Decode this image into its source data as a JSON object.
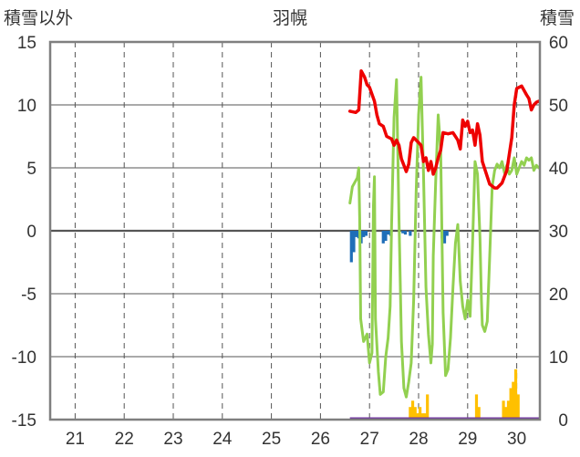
{
  "chart_data": {
    "type": "line",
    "title": "羽幌",
    "left_axis_label": "積雪以外",
    "right_axis_label": "積雪",
    "left_ylim": [
      -15,
      15
    ],
    "right_ylim": [
      0,
      60
    ],
    "left_ticks": [
      "15",
      "10",
      "5",
      "0",
      "-5",
      "-10",
      "-15"
    ],
    "right_ticks": [
      "60",
      "50",
      "40",
      "30",
      "20",
      "10",
      "0"
    ],
    "x_day_labels": [
      "21",
      "22",
      "23",
      "24",
      "25",
      "26",
      "27",
      "28",
      "29",
      "30"
    ],
    "grid": true,
    "colors": {
      "red": "#ee0000",
      "green": "#92d050",
      "blue": "#1f6eb8",
      "orange": "#ffc000",
      "purple": "#7030a0",
      "grid": "#555555",
      "frame": "#7f7f7f"
    },
    "series_red": [
      [
        26.6,
        9.5
      ],
      [
        26.72,
        9.4
      ],
      [
        26.78,
        9.6
      ],
      [
        26.83,
        12.7
      ],
      [
        26.9,
        12.2
      ],
      [
        26.95,
        11.6
      ],
      [
        27.0,
        11.4
      ],
      [
        27.1,
        10.3
      ],
      [
        27.15,
        9.2
      ],
      [
        27.2,
        8.5
      ],
      [
        27.28,
        8.3
      ],
      [
        27.35,
        7.5
      ],
      [
        27.45,
        7.3
      ],
      [
        27.5,
        6.8
      ],
      [
        27.55,
        7.2
      ],
      [
        27.6,
        6.8
      ],
      [
        27.65,
        5.7
      ],
      [
        27.7,
        5.2
      ],
      [
        27.75,
        4.7
      ],
      [
        27.8,
        5.3
      ],
      [
        27.85,
        7.0
      ],
      [
        27.9,
        7.4
      ],
      [
        28.0,
        7.0
      ],
      [
        28.05,
        6.8
      ],
      [
        28.1,
        5.5
      ],
      [
        28.15,
        5.8
      ],
      [
        28.2,
        4.8
      ],
      [
        28.25,
        5.5
      ],
      [
        28.3,
        4.5
      ],
      [
        28.35,
        5.0
      ],
      [
        28.4,
        5.8
      ],
      [
        28.45,
        6.4
      ],
      [
        28.5,
        7.8
      ],
      [
        28.6,
        7.7
      ],
      [
        28.7,
        7.8
      ],
      [
        28.8,
        7.2
      ],
      [
        28.85,
        6.5
      ],
      [
        28.9,
        8.8
      ],
      [
        28.95,
        8.3
      ],
      [
        29.0,
        8.7
      ],
      [
        29.05,
        7.8
      ],
      [
        29.1,
        8.0
      ],
      [
        29.15,
        6.8
      ],
      [
        29.2,
        8.5
      ],
      [
        29.25,
        7.6
      ],
      [
        29.3,
        5.5
      ],
      [
        29.4,
        4.3
      ],
      [
        29.45,
        3.7
      ],
      [
        29.55,
        3.4
      ],
      [
        29.6,
        3.4
      ],
      [
        29.7,
        3.8
      ],
      [
        29.8,
        4.8
      ],
      [
        29.9,
        7.4
      ],
      [
        29.95,
        10.0
      ],
      [
        30.0,
        11.3
      ],
      [
        30.1,
        11.5
      ],
      [
        30.2,
        10.8
      ],
      [
        30.25,
        10.5
      ],
      [
        30.3,
        9.6
      ],
      [
        30.35,
        10.0
      ],
      [
        30.4,
        10.2
      ],
      [
        30.45,
        10.3
      ]
    ],
    "series_green": [
      [
        26.6,
        2.2
      ],
      [
        26.65,
        3.5
      ],
      [
        26.75,
        4.2
      ],
      [
        26.78,
        5.0
      ],
      [
        26.8,
        1.0
      ],
      [
        26.82,
        -7.0
      ],
      [
        26.88,
        -8.8
      ],
      [
        26.95,
        -8.2
      ],
      [
        27.0,
        -10.5
      ],
      [
        27.05,
        -9.7
      ],
      [
        27.08,
        2.0
      ],
      [
        27.1,
        4.3
      ],
      [
        27.12,
        -7.0
      ],
      [
        27.18,
        -11.2
      ],
      [
        27.22,
        -13.0
      ],
      [
        27.28,
        -12.8
      ],
      [
        27.33,
        -10.0
      ],
      [
        27.38,
        -8.5
      ],
      [
        27.42,
        -6.0
      ],
      [
        27.45,
        0.5
      ],
      [
        27.5,
        9.0
      ],
      [
        27.55,
        12.0
      ],
      [
        27.6,
        1.0
      ],
      [
        27.65,
        -8.8
      ],
      [
        27.7,
        -12.5
      ],
      [
        27.75,
        -13.2
      ],
      [
        27.8,
        -12.0
      ],
      [
        27.85,
        -10.5
      ],
      [
        27.9,
        -5.5
      ],
      [
        27.95,
        3.0
      ],
      [
        28.0,
        9.2
      ],
      [
        28.05,
        12.2
      ],
      [
        28.1,
        4.5
      ],
      [
        28.15,
        -4.5
      ],
      [
        28.2,
        -8.2
      ],
      [
        28.25,
        -10.5
      ],
      [
        28.28,
        -9.0
      ],
      [
        28.3,
        -2.0
      ],
      [
        28.35,
        4.0
      ],
      [
        28.4,
        9.2
      ],
      [
        28.45,
        6.5
      ],
      [
        28.5,
        -6.5
      ],
      [
        28.55,
        -11.5
      ],
      [
        28.6,
        -11.0
      ],
      [
        28.65,
        -8.5
      ],
      [
        28.7,
        -4.5
      ],
      [
        28.75,
        -1.0
      ],
      [
        28.8,
        0.5
      ],
      [
        28.85,
        -4.0
      ],
      [
        28.9,
        -6.0
      ],
      [
        28.95,
        -7.0
      ],
      [
        29.0,
        -5.5
      ],
      [
        29.05,
        -6.8
      ],
      [
        29.1,
        -1.0
      ],
      [
        29.15,
        5.5
      ],
      [
        29.2,
        4.5
      ],
      [
        29.25,
        -0.5
      ],
      [
        29.28,
        -5.5
      ],
      [
        29.3,
        -7.5
      ],
      [
        29.35,
        -8.0
      ],
      [
        29.4,
        -7.2
      ],
      [
        29.45,
        -2.0
      ],
      [
        29.5,
        3.5
      ],
      [
        29.55,
        4.8
      ],
      [
        29.6,
        5.3
      ],
      [
        29.65,
        5.0
      ],
      [
        29.7,
        5.5
      ],
      [
        29.75,
        4.6
      ],
      [
        29.8,
        5.2
      ],
      [
        29.85,
        4.5
      ],
      [
        29.9,
        4.8
      ],
      [
        29.95,
        5.8
      ],
      [
        30.0,
        4.5
      ],
      [
        30.05,
        5.0
      ],
      [
        30.1,
        5.5
      ],
      [
        30.15,
        5.2
      ],
      [
        30.2,
        5.8
      ],
      [
        30.25,
        5.6
      ],
      [
        30.3,
        5.8
      ],
      [
        30.35,
        4.8
      ],
      [
        30.4,
        5.2
      ],
      [
        30.45,
        5.0
      ]
    ],
    "bars_blue": [
      [
        26.63,
        -2.5
      ],
      [
        26.68,
        -1.7
      ],
      [
        26.73,
        -0.5
      ],
      [
        26.78,
        -0.6
      ],
      [
        26.83,
        -1.0
      ],
      [
        26.88,
        -0.5
      ],
      [
        26.93,
        -0.4
      ],
      [
        27.28,
        -1.0
      ],
      [
        27.33,
        -0.8
      ],
      [
        27.38,
        -0.3
      ],
      [
        27.43,
        -0.4
      ],
      [
        27.68,
        -0.2
      ],
      [
        27.73,
        -0.3
      ],
      [
        27.83,
        -0.4
      ],
      [
        28.48,
        -0.6
      ],
      [
        28.53,
        -1.0
      ],
      [
        28.58,
        -0.4
      ]
    ],
    "bars_orange": [
      [
        27.83,
        2
      ],
      [
        27.88,
        3
      ],
      [
        27.93,
        2
      ],
      [
        27.98,
        1
      ],
      [
        28.03,
        2
      ],
      [
        28.08,
        1
      ],
      [
        28.13,
        1
      ],
      [
        28.18,
        4
      ],
      [
        29.18,
        4
      ],
      [
        29.23,
        2
      ],
      [
        29.73,
        3
      ],
      [
        29.78,
        2
      ],
      [
        29.83,
        3
      ],
      [
        29.88,
        5
      ],
      [
        29.93,
        6
      ],
      [
        29.98,
        8
      ],
      [
        30.03,
        4
      ]
    ],
    "purple_level": -15
  }
}
